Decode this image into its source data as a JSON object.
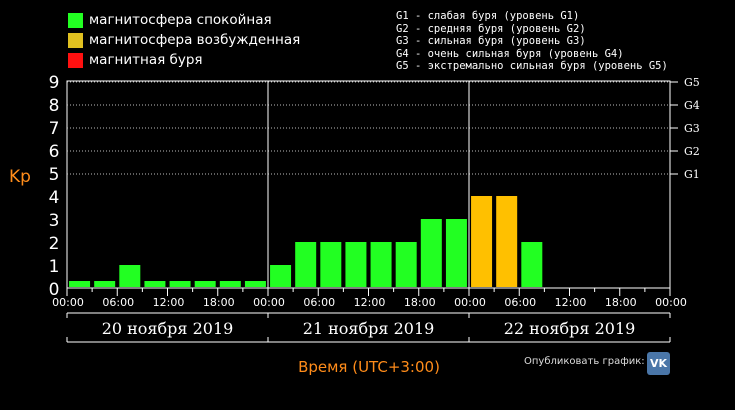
{
  "legend": {
    "items": [
      {
        "label": "магнитосфера спокойная",
        "color": "#22ff22"
      },
      {
        "label": "магнитосфера возбужденная",
        "color": "#e0c020"
      },
      {
        "label": "магнитная буря",
        "color": "#ff1010"
      }
    ]
  },
  "storm_levels": [
    "G1 - слабая буря (уровень G1)",
    "G2 - средняя буря (уровень G2)",
    "G3 - сильная буря (уровень G3)",
    "G4 - очень сильная буря (уровень G4)",
    "G5 - экстремально сильная буря (уровень G5)"
  ],
  "publish": {
    "label": "Опубликовать график:",
    "icon": "vk-icon",
    "icon_text": "VK"
  },
  "chart_data": {
    "type": "bar",
    "ylabel": "Kp",
    "xlabel": "Время (UTC+3:00)",
    "ylim": [
      0,
      9
    ],
    "yticks": [
      "0",
      "1",
      "2",
      "3",
      "4",
      "5",
      "6",
      "7",
      "8",
      "9"
    ],
    "right_ticks": [
      {
        "label": "G1",
        "value": 5
      },
      {
        "label": "G2",
        "value": 6
      },
      {
        "label": "G3",
        "value": 7
      },
      {
        "label": "G4",
        "value": 8
      },
      {
        "label": "G5",
        "value": 9
      }
    ],
    "xticks": [
      "00:00",
      "06:00",
      "12:00",
      "18:00",
      "00:00",
      "06:00",
      "12:00",
      "18:00",
      "00:00",
      "06:00",
      "12:00",
      "18:00",
      "00:00"
    ],
    "days": [
      "20 ноября 2019",
      "21 ноября 2019",
      "22 ноября 2019"
    ],
    "colors": {
      "quiet": "#22ff22",
      "active": "#ffc000"
    },
    "values": [
      0,
      0,
      1,
      0,
      0,
      0,
      0,
      0,
      1,
      2,
      2,
      2,
      2,
      2,
      3,
      3,
      4,
      4,
      2
    ],
    "bar_levels": [
      "quiet",
      "quiet",
      "quiet",
      "quiet",
      "quiet",
      "quiet",
      "quiet",
      "quiet",
      "quiet",
      "quiet",
      "quiet",
      "quiet",
      "quiet",
      "quiet",
      "quiet",
      "quiet",
      "active",
      "active",
      "quiet"
    ],
    "grid": "dotted horizontal at each Kp unit from 5 to 9"
  }
}
